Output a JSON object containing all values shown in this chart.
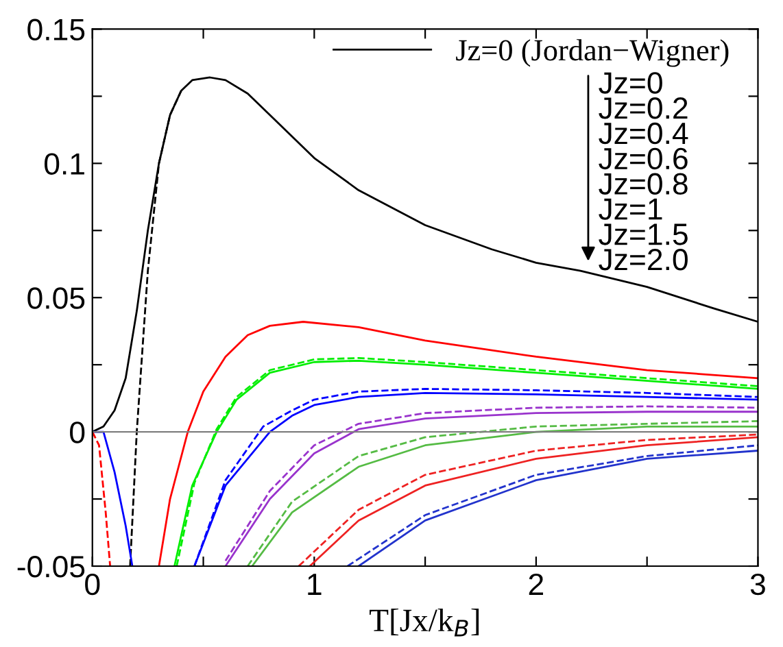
{
  "chart_data": {
    "type": "line",
    "xlabel": "T[Jx/k$_{B}$]",
    "xlim": [
      0,
      3
    ],
    "ylim": [
      -0.05,
      0.15
    ],
    "xticks": [
      0,
      {
        "value": 0.5,
        "label": null
      },
      1,
      {
        "value": 1.5,
        "label": null
      },
      2,
      {
        "value": 2.5,
        "label": null
      },
      3
    ],
    "yticks": [
      -0.05,
      {
        "value": -0.025,
        "label": null
      },
      0,
      {
        "value": 0.025,
        "label": null
      },
      0.05,
      {
        "value": 0.075,
        "label": null
      },
      0.1,
      {
        "value": 0.125,
        "label": null
      },
      0.15
    ],
    "ref_lines": [
      {
        "axis": "y",
        "value": 0,
        "color": "#808080"
      }
    ],
    "legend": "top",
    "grid": false,
    "marker": "none",
    "annotations": [
      "Jz=0",
      "Jz=0.2",
      "Jz=0.4",
      "Jz=0.6",
      "Jz=0.8",
      "Jz=1",
      "Jz=1.5",
      "Jz=2.0"
    ],
    "series": [
      {
        "name": "Jz=0 (Jordan−Wigner)",
        "color": "#000000",
        "line_style": "solid",
        "x": [
          0,
          0.05,
          0.1,
          0.15,
          0.2,
          0.25,
          0.3,
          0.35,
          0.4,
          0.45,
          0.53,
          0.6,
          0.7,
          0.8,
          1.0,
          1.2,
          1.5,
          1.8,
          2.0,
          2.2,
          2.5,
          2.8,
          3.0
        ],
        "values": [
          0,
          0.002,
          0.008,
          0.02,
          0.045,
          0.075,
          0.1,
          0.118,
          0.127,
          0.131,
          0.132,
          0.131,
          0.126,
          0.118,
          0.102,
          0.09,
          0.077,
          0.068,
          0.063,
          0.06,
          0.054,
          0.046,
          0.041
        ]
      },
      {
        "color": "#000000",
        "line_style": "dashed",
        "x": [
          0.17,
          0.2,
          0.25,
          0.3,
          0.35,
          0.4
        ],
        "values": [
          -0.05,
          0.0,
          0.06,
          0.1,
          0.118,
          0.127
        ]
      },
      {
        "color": "#ff0000",
        "line_style": "solid",
        "x": [
          0.3,
          0.35,
          0.43,
          0.5,
          0.6,
          0.7,
          0.8,
          0.95,
          1.2,
          1.5,
          2.0,
          2.5,
          3.0
        ],
        "values": [
          -0.05,
          -0.025,
          0,
          0.015,
          0.028,
          0.036,
          0.0395,
          0.041,
          0.039,
          0.034,
          0.028,
          0.023,
          0.02
        ]
      },
      {
        "color": "#00ee00",
        "line_style": "solid",
        "x": [
          0.37,
          0.45,
          0.56,
          0.65,
          0.8,
          1.0,
          1.2,
          1.5,
          2.0,
          2.5,
          3.0
        ],
        "values": [
          -0.05,
          -0.02,
          0,
          0.012,
          0.022,
          0.026,
          0.0265,
          0.025,
          0.022,
          0.019,
          0.016
        ]
      },
      {
        "color": "#00ee00",
        "line_style": "dashed",
        "x": [
          0.38,
          0.46,
          0.56,
          0.65,
          0.8,
          1.0,
          1.2,
          1.5,
          2.0,
          2.5,
          3.0
        ],
        "values": [
          -0.05,
          -0.019,
          0.001,
          0.013,
          0.023,
          0.027,
          0.0275,
          0.026,
          0.023,
          0.02,
          0.017
        ]
      },
      {
        "color": "#0000ff",
        "line_style": "solid",
        "x": [
          0.46,
          0.6,
          0.8,
          0.9,
          1.0,
          1.2,
          1.5,
          2.0,
          2.5,
          3.0
        ],
        "values": [
          -0.05,
          -0.02,
          0,
          0.006,
          0.01,
          0.013,
          0.0145,
          0.014,
          0.013,
          0.012
        ]
      },
      {
        "color": "#0000ff",
        "line_style": "dashed",
        "x": [
          0.46,
          0.6,
          0.77,
          0.9,
          1.0,
          1.2,
          1.5,
          2.0,
          2.5,
          3.0
        ],
        "values": [
          -0.05,
          -0.018,
          0.002,
          0.008,
          0.012,
          0.015,
          0.016,
          0.0155,
          0.0145,
          0.013
        ]
      },
      {
        "color": "#9933cc",
        "line_style": "solid",
        "x": [
          0.6,
          0.8,
          1.0,
          1.2,
          1.5,
          2.0,
          2.5,
          3.0
        ],
        "values": [
          -0.05,
          -0.025,
          -0.008,
          0.001,
          0.005,
          0.007,
          0.0075,
          0.0075
        ]
      },
      {
        "color": "#9933cc",
        "line_style": "dashed",
        "x": [
          0.6,
          0.8,
          1.0,
          1.2,
          1.5,
          2.0,
          2.5,
          3.0
        ],
        "values": [
          -0.048,
          -0.022,
          -0.005,
          0.003,
          0.007,
          0.009,
          0.0095,
          0.009
        ]
      },
      {
        "color": "#55bb44",
        "line_style": "solid",
        "x": [
          0.72,
          0.9,
          1.2,
          1.5,
          2.0,
          2.5,
          3.0
        ],
        "values": [
          -0.05,
          -0.03,
          -0.013,
          -0.005,
          0.0,
          0.002,
          0.002
        ]
      },
      {
        "color": "#55bb44",
        "line_style": "dashed",
        "x": [
          0.7,
          0.9,
          1.2,
          1.5,
          2.0,
          2.5,
          3.0
        ],
        "values": [
          -0.05,
          -0.026,
          -0.009,
          -0.002,
          0.002,
          0.003,
          0.004
        ]
      },
      {
        "color": "#ee2222",
        "line_style": "solid",
        "x": [
          0.98,
          1.2,
          1.5,
          2.0,
          2.5,
          3.0
        ],
        "values": [
          -0.05,
          -0.033,
          -0.02,
          -0.01,
          -0.005,
          -0.002
        ]
      },
      {
        "color": "#ee2222",
        "line_style": "dashed",
        "x": [
          0.93,
          1.2,
          1.5,
          2.0,
          2.5,
          3.0
        ],
        "values": [
          -0.05,
          -0.029,
          -0.016,
          -0.007,
          -0.003,
          -0.001
        ]
      },
      {
        "color": "#2233cc",
        "line_style": "solid",
        "x": [
          1.2,
          1.5,
          2.0,
          2.5,
          3.0
        ],
        "values": [
          -0.05,
          -0.033,
          -0.018,
          -0.01,
          -0.007
        ]
      },
      {
        "color": "#2233cc",
        "line_style": "dashed",
        "x": [
          1.15,
          1.5,
          2.0,
          2.5,
          3.0
        ],
        "values": [
          -0.05,
          -0.031,
          -0.016,
          -0.009,
          -0.005
        ]
      },
      {
        "color": "#0000ff",
        "line_style": "solid",
        "x": [
          0,
          0.05,
          0.1,
          0.15,
          0.18
        ],
        "values": [
          0,
          0,
          -0.015,
          -0.035,
          -0.05
        ]
      },
      {
        "color": "#ff0000",
        "line_style": "dashed",
        "x": [
          0,
          0.03,
          0.06,
          0.08
        ],
        "values": [
          0,
          -0.005,
          -0.03,
          -0.05
        ]
      }
    ]
  }
}
